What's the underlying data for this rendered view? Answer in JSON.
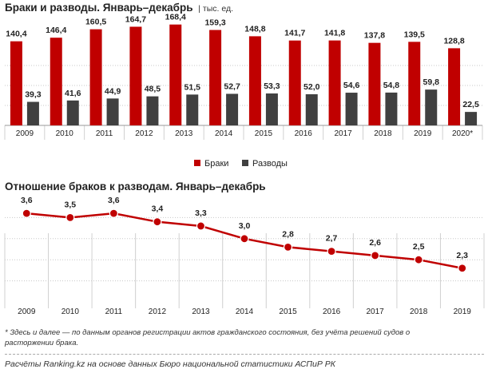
{
  "title1": "Браки и разводы. Январь–декабрь",
  "unit": "| тыс. ед.",
  "title2": "Отношение браков к разводам. Январь–декабрь",
  "footnote": "* Здесь и далее — по данным органов регистрации актов гражданского состояния, без учёта решений судов о расторжении брака.",
  "source": "Расчёты Ranking.kz на основе данных Бюро национальной статистики АСПиР РК",
  "colors": {
    "marriages": "#c00000",
    "divorces": "#404040",
    "ratio": "#c00000",
    "grid": "#c8c8c8"
  },
  "chart_data": [
    {
      "type": "bar",
      "title": "Браки и разводы. Январь–декабрь",
      "unit": "тыс. ед.",
      "categories": [
        "2009",
        "2010",
        "2011",
        "2012",
        "2013",
        "2014",
        "2015",
        "2016",
        "2017",
        "2018",
        "2019",
        "2020*"
      ],
      "series": [
        {
          "name": "Браки",
          "values": [
            140.4,
            146.4,
            160.5,
            164.7,
            168.4,
            159.3,
            148.8,
            141.7,
            141.8,
            137.8,
            139.5,
            128.8
          ]
        },
        {
          "name": "Разводы",
          "values": [
            39.3,
            41.6,
            44.9,
            48.5,
            51.5,
            52.7,
            53.3,
            52.0,
            54.6,
            54.8,
            59.8,
            22.5
          ]
        }
      ],
      "labels": {
        "Браки": [
          "140,4",
          "146,4",
          "160,5",
          "164,7",
          "168,4",
          "159,3",
          "148,8",
          "141,7",
          "141,8",
          "137,8",
          "139,5",
          "128,8"
        ],
        "Разводы": [
          "39,3",
          "41,6",
          "44,9",
          "48,5",
          "51,5",
          "52,7",
          "53,3",
          "52,0",
          "54,6",
          "54,8",
          "59,8",
          "22,5"
        ]
      },
      "ylim": [
        0,
        180
      ],
      "legend": "bottom-center"
    },
    {
      "type": "line",
      "title": "Отношение браков к разводам. Январь–декабрь",
      "categories": [
        "2009",
        "2010",
        "2011",
        "2012",
        "2013",
        "2014",
        "2015",
        "2016",
        "2017",
        "2018",
        "2019"
      ],
      "values": [
        3.6,
        3.5,
        3.6,
        3.4,
        3.3,
        3.0,
        2.8,
        2.7,
        2.6,
        2.5,
        2.3
      ],
      "labels": [
        "3,6",
        "3,5",
        "3,6",
        "3,4",
        "3,3",
        "3,0",
        "2,8",
        "2,7",
        "2,6",
        "2,5",
        "2,3"
      ],
      "ylim": [
        1.5,
        4.0
      ]
    }
  ]
}
